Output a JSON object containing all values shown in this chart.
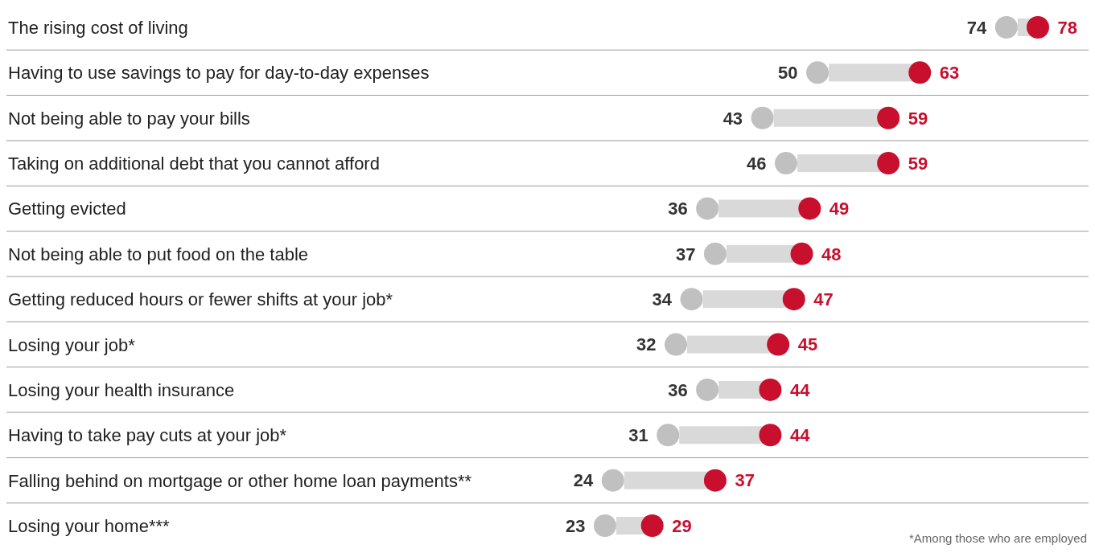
{
  "chart_data": {
    "type": "scatter",
    "orientation": "horizontal",
    "categories": [
      "The rising cost of living",
      "Having to use savings to pay for day-to-day expenses",
      "Not being able to pay your bills",
      "Taking on additional debt that you cannot afford",
      "Getting evicted",
      "Not being able to put food on the table",
      "Getting reduced hours or fewer shifts at your job*",
      "Losing your job*",
      "Losing your health insurance",
      "Having to take pay cuts at your job*",
      "Falling behind on mortgage or other home loan payments**",
      "Losing your home***"
    ],
    "series": [
      {
        "color": "#c0c0c0",
        "values": [
          74,
          50,
          43,
          46,
          36,
          37,
          34,
          32,
          36,
          31,
          24,
          23
        ]
      },
      {
        "color": "#c8102e",
        "values": [
          78,
          63,
          59,
          59,
          49,
          48,
          47,
          45,
          44,
          44,
          37,
          29
        ]
      }
    ],
    "data_labels": true,
    "grid": "y",
    "tick_labels": "y",
    "annotations": [
      "*Among those who are employed"
    ]
  }
}
